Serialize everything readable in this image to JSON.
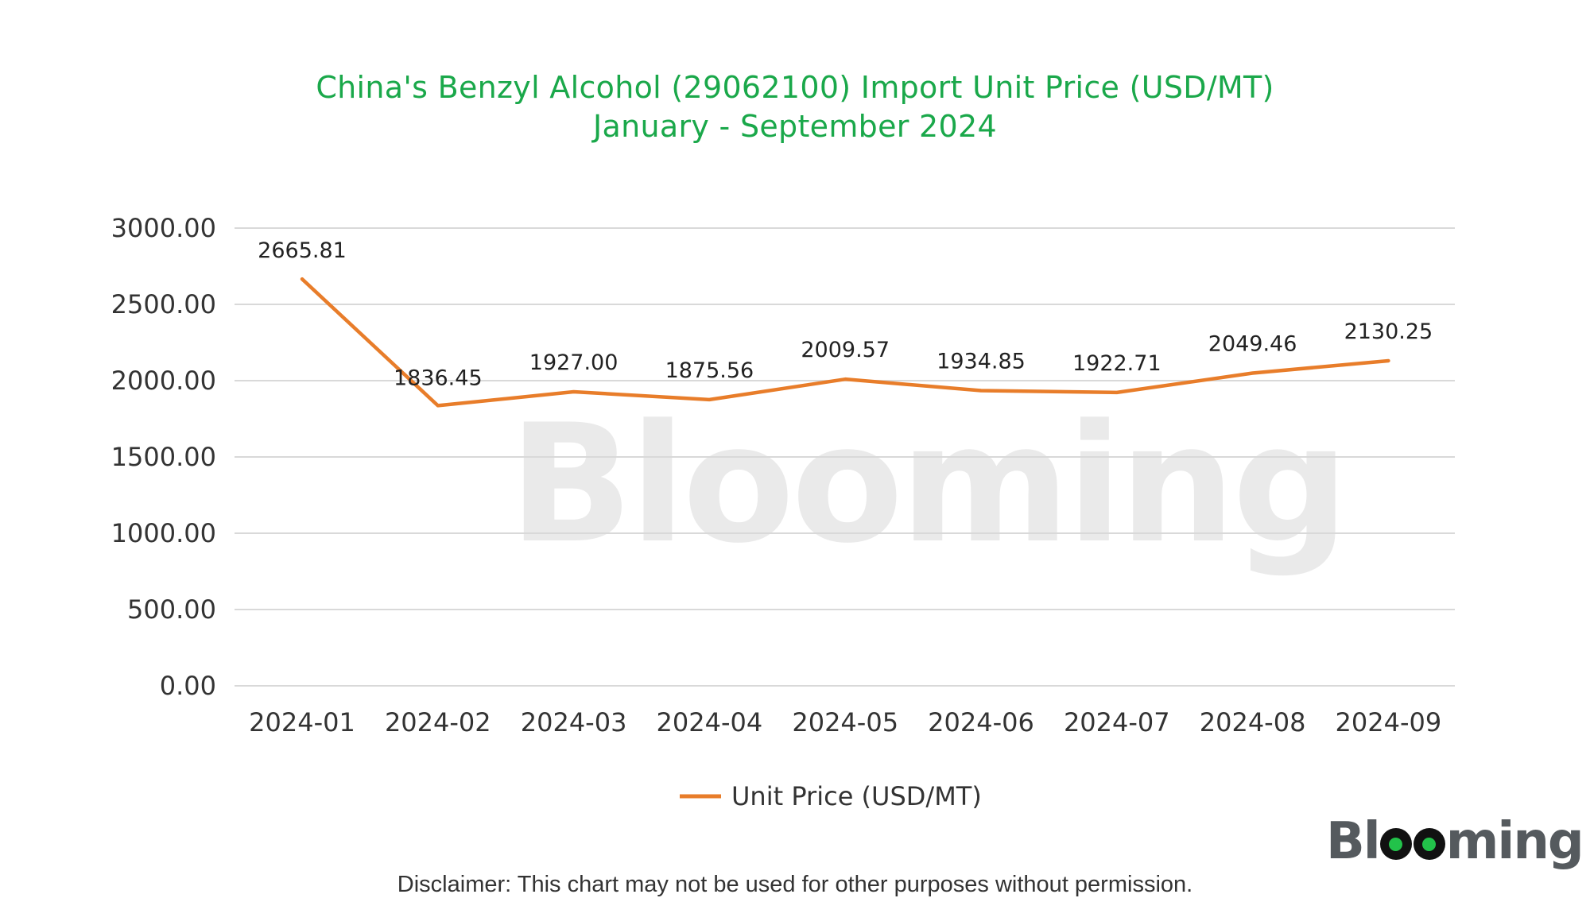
{
  "chart_data": {
    "type": "line",
    "title": "China's Benzyl Alcohol (29062100) Import Unit Price (USD/MT)",
    "subtitle": "January - September 2024",
    "categories": [
      "2024-01",
      "2024-02",
      "2024-03",
      "2024-04",
      "2024-05",
      "2024-06",
      "2024-07",
      "2024-08",
      "2024-09"
    ],
    "series": [
      {
        "name": "Unit Price (USD/MT)",
        "values": [
          2665.81,
          1836.45,
          1927.0,
          1875.56,
          2009.57,
          1934.85,
          1922.71,
          2049.46,
          2130.25
        ],
        "labels": [
          "2665.81",
          "1836.45",
          "1927.00",
          "1875.56",
          "2009.57",
          "1934.85",
          "1922.71",
          "2049.46",
          "2130.25"
        ],
        "color": "#e87d2a"
      }
    ],
    "yticks": [
      "0.00",
      "500.00",
      "1000.00",
      "1500.00",
      "2000.00",
      "2500.00",
      "3000.00"
    ],
    "ylim": [
      0,
      3000
    ],
    "grid": true,
    "legend": "bottom"
  },
  "watermark": "Blooming",
  "brand": {
    "logo_text_before": "Bl",
    "logo_text_after": "ming"
  },
  "disclaimer": "Disclaimer: This chart may not be used for other purposes without permission.",
  "colors": {
    "title": "#1aa84a",
    "line": "#e87d2a",
    "grid": "#d9d9d9"
  }
}
